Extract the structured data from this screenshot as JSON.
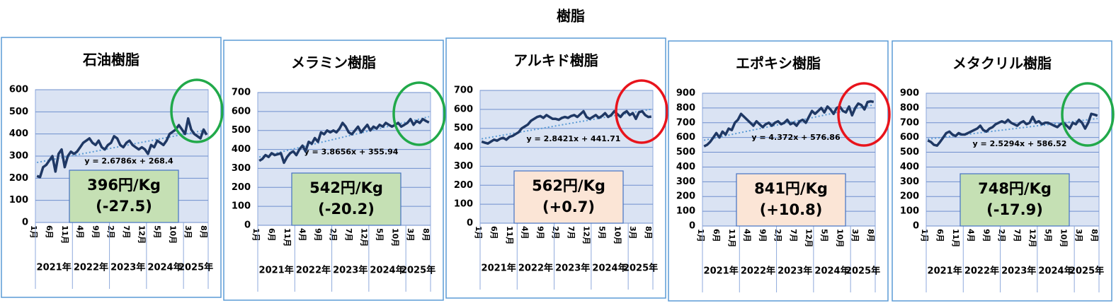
{
  "title": "樹脂",
  "chart_data": [
    {
      "type": "line",
      "title": "石油樹脂",
      "color": "#1f3864",
      "categories": [
        "1月",
        null,
        null,
        null,
        null,
        "6月",
        null,
        null,
        null,
        null,
        "11月",
        null,
        null,
        null,
        null,
        "4月",
        null,
        null,
        null,
        null,
        "9月",
        null,
        null,
        null,
        null,
        "2月",
        null,
        null,
        null,
        null,
        "7月",
        null,
        null,
        null,
        null,
        "12月",
        null,
        null,
        null,
        null,
        "5月",
        null,
        null,
        null,
        null,
        "10月",
        null,
        null,
        null,
        null,
        "3月",
        null,
        null,
        null,
        null,
        "8月"
      ],
      "years": [
        "2021年",
        "2022年",
        "2023年",
        "2024年",
        "2025年"
      ],
      "values": [
        210,
        205,
        250,
        260,
        280,
        300,
        230,
        310,
        330,
        250,
        300,
        320,
        310,
        320,
        340,
        360,
        370,
        380,
        360,
        350,
        370,
        340,
        330,
        350,
        360,
        390,
        380,
        350,
        340,
        360,
        370,
        350,
        340,
        330,
        340,
        330,
        310,
        350,
        340,
        370,
        360,
        350,
        370,
        400,
        410,
        420,
        440,
        420,
        400,
        470,
        420,
        400,
        390,
        380,
        420,
        396
      ],
      "ylim": [
        0,
        600
      ],
      "yticks": [
        0,
        100,
        200,
        300,
        400,
        500,
        600
      ],
      "grid": true,
      "trendline": {
        "label": "y = 2.6786x + 268.4",
        "slope": 2.6786,
        "intercept": 268.4
      },
      "price_label": "396円/Kg",
      "change_label": "(-27.5)",
      "box_color": "#c5e0b4",
      "highlight_color": "#21a94a"
    },
    {
      "type": "line",
      "title": "メラミン樹脂",
      "color": "#1f3864",
      "categories": [
        "1月",
        null,
        null,
        null,
        null,
        "6月",
        null,
        null,
        null,
        null,
        "11月",
        null,
        null,
        null,
        null,
        "4月",
        null,
        null,
        null,
        null,
        "9月",
        null,
        null,
        null,
        null,
        "2月",
        null,
        null,
        null,
        null,
        "7月",
        null,
        null,
        null,
        null,
        "12月",
        null,
        null,
        null,
        null,
        "5月",
        null,
        null,
        null,
        null,
        "10月",
        null,
        null,
        null,
        null,
        "3月",
        null,
        null,
        null,
        null,
        "8月"
      ],
      "years": [
        "2021年",
        "2022年",
        "2023年",
        "2024年",
        "2025年"
      ],
      "values": [
        340,
        350,
        370,
        360,
        380,
        370,
        375,
        380,
        330,
        360,
        380,
        390,
        370,
        400,
        420,
        390,
        440,
        430,
        460,
        440,
        490,
        480,
        500,
        490,
        500,
        490,
        510,
        540,
        520,
        490,
        480,
        500,
        520,
        490,
        510,
        530,
        500,
        520,
        510,
        530,
        520,
        540,
        530,
        520,
        530,
        540,
        520,
        530,
        540,
        560,
        530,
        550,
        540,
        560,
        550,
        542
      ],
      "ylim": [
        0,
        700
      ],
      "yticks": [
        0,
        100,
        200,
        300,
        400,
        500,
        600,
        700
      ],
      "grid": true,
      "trendline": {
        "label": "y = 3.8656x + 355.94",
        "slope": 3.8656,
        "intercept": 355.94
      },
      "price_label": "542円/Kg",
      "change_label": "(-20.2)",
      "box_color": "#c5e0b4",
      "highlight_color": "#21a94a"
    },
    {
      "type": "line",
      "title": "アルキド樹脂",
      "color": "#1f3864",
      "categories": [
        "1月",
        null,
        null,
        null,
        null,
        "6月",
        null,
        null,
        null,
        null,
        "11月",
        null,
        null,
        null,
        null,
        "4月",
        null,
        null,
        null,
        null,
        "9月",
        null,
        null,
        null,
        null,
        "2月",
        null,
        null,
        null,
        null,
        "7月",
        null,
        null,
        null,
        null,
        "12月",
        null,
        null,
        null,
        null,
        "5月",
        null,
        null,
        null,
        null,
        "10月",
        null,
        null,
        null,
        null,
        "3月",
        null,
        null,
        null,
        null,
        "8月"
      ],
      "years": [
        "2021年",
        "2022年",
        "2023年",
        "2024年",
        "2025年"
      ],
      "values": [
        430,
        425,
        420,
        430,
        440,
        435,
        445,
        450,
        440,
        455,
        460,
        470,
        480,
        500,
        510,
        520,
        540,
        550,
        560,
        565,
        555,
        570,
        560,
        550,
        550,
        545,
        555,
        560,
        555,
        565,
        570,
        560,
        575,
        590,
        560,
        550,
        560,
        570,
        555,
        565,
        580,
        560,
        570,
        590,
        575,
        560,
        580,
        590,
        570,
        580,
        550,
        585,
        590,
        570,
        560,
        562
      ],
      "ylim": [
        0,
        700
      ],
      "yticks": [
        0,
        100,
        200,
        300,
        400,
        500,
        600,
        700
      ],
      "grid": true,
      "trendline": {
        "label": "y = 2.8421x + 441.71",
        "slope": 2.8421,
        "intercept": 441.71
      },
      "price_label": "562円/Kg",
      "change_label": "(+0.7)",
      "box_color": "#fbe5d6",
      "highlight_color": "#e8141c"
    },
    {
      "type": "line",
      "title": "エポキシ樹脂",
      "color": "#1f3864",
      "categories": [
        "1月",
        null,
        null,
        null,
        null,
        "6月",
        null,
        null,
        null,
        null,
        "11月",
        null,
        null,
        null,
        null,
        "4月",
        null,
        null,
        null,
        null,
        "9月",
        null,
        null,
        null,
        null,
        "2月",
        null,
        null,
        null,
        null,
        "7月",
        null,
        null,
        null,
        null,
        "12月",
        null,
        null,
        null,
        null,
        "5月",
        null,
        null,
        null,
        null,
        "10月",
        null,
        null,
        null,
        null,
        "3月",
        null,
        null,
        null,
        null,
        "8月"
      ],
      "years": [
        "2021年",
        "2022年",
        "2023年",
        "2024年",
        "2025年"
      ],
      "values": [
        540,
        550,
        570,
        600,
        630,
        600,
        640,
        620,
        660,
        650,
        700,
        720,
        760,
        740,
        720,
        700,
        680,
        710,
        690,
        670,
        690,
        700,
        680,
        700,
        710,
        690,
        700,
        720,
        690,
        700,
        680,
        710,
        720,
        700,
        740,
        780,
        760,
        780,
        800,
        770,
        810,
        790,
        760,
        800,
        810,
        780,
        770,
        810,
        750,
        800,
        830,
        820,
        790,
        840,
        845,
        841
      ],
      "ylim": [
        0,
        900
      ],
      "yticks": [
        0,
        100,
        200,
        300,
        400,
        500,
        600,
        700,
        800,
        900
      ],
      "grid": true,
      "trendline": {
        "label": "y = 4.372x + 576.86",
        "slope": 4.372,
        "intercept": 576.86
      },
      "price_label": "841円/Kg",
      "change_label": "(+10.8)",
      "box_color": "#fbe5d6",
      "highlight_color": "#e8141c"
    },
    {
      "type": "line",
      "title": "メタクリル樹脂",
      "color": "#1f3864",
      "categories": [
        "1月",
        null,
        null,
        null,
        null,
        "6月",
        null,
        null,
        null,
        null,
        "11月",
        null,
        null,
        null,
        null,
        "4月",
        null,
        null,
        null,
        null,
        "9月",
        null,
        null,
        null,
        null,
        "2月",
        null,
        null,
        null,
        null,
        "7月",
        null,
        null,
        null,
        null,
        "12月",
        null,
        null,
        null,
        null,
        "5月",
        null,
        null,
        null,
        null,
        "10月",
        null,
        null,
        null,
        null,
        "3月",
        null,
        null,
        null,
        null,
        "8月"
      ],
      "years": [
        "2021年",
        "2022年",
        "2023年",
        "2024年",
        "2025年"
      ],
      "values": [
        580,
        570,
        550,
        545,
        570,
        600,
        630,
        640,
        620,
        610,
        630,
        620,
        620,
        630,
        640,
        650,
        660,
        680,
        650,
        640,
        660,
        670,
        690,
        700,
        710,
        700,
        720,
        700,
        690,
        680,
        700,
        710,
        690,
        700,
        740,
        700,
        710,
        690,
        700,
        700,
        690,
        680,
        670,
        690,
        700,
        680,
        660,
        700,
        690,
        720,
        700,
        660,
        700,
        760,
        755,
        748
      ],
      "ylim": [
        0,
        900
      ],
      "yticks": [
        0,
        100,
        200,
        300,
        400,
        500,
        600,
        700,
        800,
        900
      ],
      "grid": true,
      "trendline": {
        "label": "y = 2.5294x + 586.52",
        "slope": 2.5294,
        "intercept": 586.52
      },
      "price_label": "748円/Kg",
      "change_label": "(-17.9)",
      "box_color": "#c5e0b4",
      "highlight_color": "#21a94a"
    }
  ]
}
